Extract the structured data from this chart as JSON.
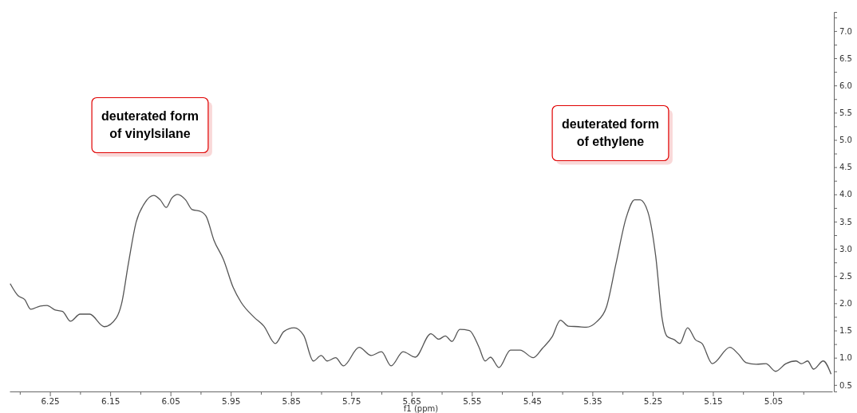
{
  "chart_data": {
    "type": "line",
    "xlabel": "f1 (ppm)",
    "xlim": [
      6.317,
      4.952
    ],
    "ylim": [
      0.38,
      7.35
    ],
    "xticks": [
      {
        "value": 6.3,
        "label": null
      },
      6.25,
      {
        "value": 6.2,
        "label": null
      },
      6.15,
      {
        "value": 6.1,
        "label": null
      },
      6.05,
      {
        "value": 6.0,
        "label": null
      },
      5.95,
      {
        "value": 5.9,
        "label": null
      },
      5.85,
      {
        "value": 5.8,
        "label": null
      },
      5.75,
      {
        "value": 5.7,
        "label": null
      },
      5.65,
      {
        "value": 5.6,
        "label": null
      },
      5.55,
      {
        "value": 5.5,
        "label": null
      },
      5.45,
      {
        "value": 5.4,
        "label": null
      },
      5.35,
      {
        "value": 5.3,
        "label": null
      },
      5.25,
      {
        "value": 5.2,
        "label": null
      },
      5.15,
      {
        "value": 5.1,
        "label": null
      },
      5.05,
      {
        "value": 5.0,
        "label": null
      }
    ],
    "yticks": [
      {
        "value": 0.5,
        "label": "0.5"
      },
      {
        "value": 0.75,
        "label": null
      },
      {
        "value": 1,
        "label": "1.0"
      },
      {
        "value": 1.25,
        "label": null
      },
      {
        "value": 1.5,
        "label": "1.5"
      },
      {
        "value": 1.75,
        "label": null
      },
      {
        "value": 2,
        "label": "2.0"
      },
      {
        "value": 2.25,
        "label": null
      },
      {
        "value": 2.5,
        "label": "2.5"
      },
      {
        "value": 2.75,
        "label": null
      },
      {
        "value": 3,
        "label": "3.0"
      },
      {
        "value": 3.25,
        "label": null
      },
      {
        "value": 3.5,
        "label": "3.5"
      },
      {
        "value": 3.75,
        "label": null
      },
      {
        "value": 4,
        "label": "4.0"
      },
      {
        "value": 4.25,
        "label": null
      },
      {
        "value": 4.5,
        "label": "4.5"
      },
      {
        "value": 4.75,
        "label": null
      },
      {
        "value": 5,
        "label": "5.0"
      },
      {
        "value": 5.25,
        "label": null
      },
      {
        "value": 5.5,
        "label": "5.5"
      },
      {
        "value": 5.75,
        "label": null
      },
      {
        "value": 6,
        "label": "6.0"
      },
      {
        "value": 6.25,
        "label": null
      },
      {
        "value": 6.5,
        "label": "6.5"
      },
      {
        "value": 6.75,
        "label": null
      },
      {
        "value": 7,
        "label": "7.0"
      },
      {
        "value": 7.25,
        "label": null
      }
    ],
    "grid": false,
    "marker": "none",
    "line_style": "solid",
    "annotations": [
      "deuterated form\nof vinylsilane",
      "deuterated form\nof ethylene"
    ],
    "series": [
      {
        "color": "#555555",
        "x": [
          6.316,
          6.303,
          6.292,
          6.282,
          6.266,
          6.255,
          6.242,
          6.229,
          6.216,
          6.2,
          6.184,
          6.16,
          6.14,
          6.131,
          6.12,
          6.107,
          6.094,
          6.078,
          6.067,
          6.057,
          6.048,
          6.038,
          6.025,
          6.014,
          6.001,
          5.991,
          5.978,
          5.962,
          5.946,
          5.933,
          5.911,
          5.895,
          5.876,
          5.862,
          5.845,
          5.829,
          5.813,
          5.8,
          5.79,
          5.776,
          5.763,
          5.737,
          5.717,
          5.7,
          5.684,
          5.664,
          5.644,
          5.618,
          5.605,
          5.594,
          5.583,
          5.57,
          5.554,
          5.538,
          5.528,
          5.519,
          5.505,
          5.486,
          5.47,
          5.448,
          5.433,
          5.417,
          5.403,
          5.39,
          5.373,
          5.36,
          5.343,
          5.327,
          5.311,
          5.294,
          5.28,
          5.271,
          5.258,
          5.245,
          5.234,
          5.226,
          5.214,
          5.205,
          5.192,
          5.179,
          5.168,
          5.151,
          5.122,
          5.108,
          5.095,
          5.078,
          5.062,
          5.046,
          5.029,
          5.012,
          5.003,
          4.993,
          4.983,
          4.967,
          4.954
        ],
        "values": [
          2.36,
          2.14,
          2.07,
          1.89,
          1.95,
          1.96,
          1.88,
          1.85,
          1.67,
          1.8,
          1.8,
          1.57,
          1.73,
          2.0,
          2.72,
          3.49,
          3.82,
          3.98,
          3.9,
          3.76,
          3.93,
          4.0,
          3.9,
          3.72,
          3.69,
          3.6,
          3.16,
          2.8,
          2.29,
          2.02,
          1.74,
          1.58,
          1.26,
          1.48,
          1.55,
          1.41,
          0.94,
          1.04,
          0.94,
          1.0,
          0.85,
          1.19,
          1.04,
          1.11,
          0.85,
          1.11,
          1.01,
          1.44,
          1.34,
          1.4,
          1.3,
          1.52,
          1.5,
          1.19,
          0.94,
          1.01,
          0.82,
          1.14,
          1.14,
          1.0,
          1.17,
          1.38,
          1.69,
          1.58,
          1.57,
          1.56,
          1.66,
          1.92,
          2.72,
          3.57,
          3.9,
          3.9,
          3.68,
          2.87,
          1.7,
          1.39,
          1.33,
          1.26,
          1.55,
          1.33,
          1.26,
          0.89,
          1.19,
          1.07,
          0.91,
          0.88,
          0.89,
          0.75,
          0.89,
          0.94,
          0.89,
          0.94,
          0.79,
          0.94,
          0.7
        ]
      }
    ]
  }
}
